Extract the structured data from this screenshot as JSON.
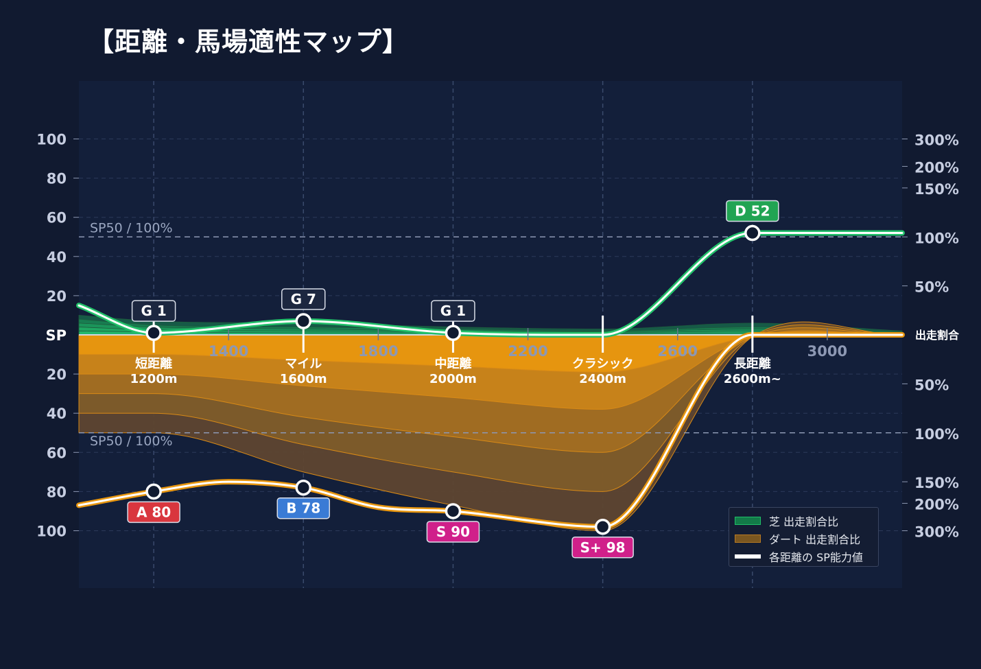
{
  "title": "【距離・馬場適性マップ】",
  "colors": {
    "background": "#111a30",
    "plot_bg": "#131f3a",
    "turf": "#22c06a",
    "dirt": "#e8960f",
    "grid": "#2c3a5a",
    "rank_S": "#d0208a",
    "rank_A": "#d9363e",
    "rank_B": "#3a7bd5",
    "rank_D": "#21a453",
    "badge_G": "#1c2740"
  },
  "legend": {
    "turf_label": "芝 出走割合比",
    "dirt_label": "ダート 出走割合比",
    "sp_label": "各距離の SP能力値"
  },
  "chart_data": {
    "type": "area",
    "x_ticks": [
      "1400",
      "1800",
      "2200",
      "2600",
      "3000"
    ],
    "x_tick_values": [
      1400,
      1800,
      2200,
      2600,
      3000
    ],
    "xlim": [
      1000,
      3200
    ],
    "y_ticks_upper": [
      "100",
      "80",
      "60",
      "40",
      "20"
    ],
    "y_tick_values_upper": [
      100,
      80,
      60,
      40,
      20
    ],
    "y_ticks_lower": [
      "20",
      "40",
      "60",
      "80",
      "100"
    ],
    "y_tick_values_lower": [
      20,
      40,
      60,
      80,
      100
    ],
    "y_center_label": "SP",
    "ylim_upper": [
      0,
      120
    ],
    "ylim_lower": [
      0,
      120
    ],
    "right_ticks_upper": [
      {
        "label": "300%",
        "sp": 100
      },
      {
        "label": "200%",
        "sp": 86
      },
      {
        "label": "150%",
        "sp": 75
      },
      {
        "label": "100%",
        "sp": 50
      },
      {
        "label": "50%",
        "sp": 25
      }
    ],
    "right_ticks_lower": [
      {
        "label": "50%",
        "sp": 25
      },
      {
        "label": "100%",
        "sp": 50
      },
      {
        "label": "150%",
        "sp": 75
      },
      {
        "label": "200%",
        "sp": 86
      },
      {
        "label": "300%",
        "sp": 100
      }
    ],
    "right_center_label": "出走割合",
    "reference_label_upper": "SP50 / 100%",
    "reference_label_lower": "SP50 / 100%",
    "reference_value": 50,
    "categories": [
      {
        "name": "短距離",
        "distance": "1200m",
        "x": 1200
      },
      {
        "name": "マイル",
        "distance": "1600m",
        "x": 1600
      },
      {
        "name": "中距離",
        "distance": "2000m",
        "x": 2000
      },
      {
        "name": "クラシック",
        "distance": "2400m",
        "x": 2400
      },
      {
        "name": "長距離",
        "distance": "2600m~",
        "x": 2800
      }
    ],
    "turf_sp": {
      "points": [
        [
          1000,
          15
        ],
        [
          1200,
          1
        ],
        [
          1600,
          7
        ],
        [
          2000,
          1
        ],
        [
          2400,
          0
        ],
        [
          2800,
          52
        ],
        [
          3200,
          52
        ]
      ],
      "badges": [
        {
          "x": 1200,
          "y": 1,
          "label": "G 1",
          "rank": "G"
        },
        {
          "x": 1600,
          "y": 7,
          "label": "G 7",
          "rank": "G"
        },
        {
          "x": 2000,
          "y": 1,
          "label": "G 1",
          "rank": "G"
        },
        {
          "x": 2800,
          "y": 52,
          "label": "D 52",
          "rank": "D"
        }
      ]
    },
    "dirt_sp": {
      "points": [
        [
          1000,
          87
        ],
        [
          1200,
          80
        ],
        [
          1400,
          75
        ],
        [
          1600,
          78
        ],
        [
          1800,
          88
        ],
        [
          2000,
          90
        ],
        [
          2400,
          98
        ],
        [
          2800,
          0
        ],
        [
          3200,
          0
        ]
      ],
      "badges": [
        {
          "x": 1200,
          "y": 80,
          "label": "A 80",
          "rank": "A"
        },
        {
          "x": 1600,
          "y": 78,
          "label": "B 78",
          "rank": "B"
        },
        {
          "x": 2000,
          "y": 90,
          "label": "S 90",
          "rank": "S"
        },
        {
          "x": 2400,
          "y": 98,
          "label": "S+ 98",
          "rank": "S"
        }
      ]
    },
    "turf_ratio": {
      "x": [
        1000,
        1200,
        1600,
        2000,
        2400,
        2800,
        3200
      ],
      "layers": [
        [
          10,
          7,
          6,
          4,
          3,
          6,
          2
        ],
        [
          8,
          5,
          4,
          3,
          2,
          4,
          1.5
        ],
        [
          6,
          4,
          3,
          2,
          1.5,
          3,
          1
        ],
        [
          4,
          2.5,
          2,
          1.5,
          1,
          2,
          0.5
        ],
        [
          2,
          1.5,
          1,
          1,
          0.5,
          1,
          0.3
        ]
      ]
    },
    "dirt_ratio": {
      "x": [
        1000,
        1200,
        1600,
        2000,
        2400,
        2800,
        3200
      ],
      "layers": [
        [
          10,
          10,
          13,
          16,
          19,
          1,
          0
        ],
        [
          20,
          20,
          26,
          32,
          38,
          1,
          0
        ],
        [
          30,
          30,
          42,
          52,
          60,
          1,
          0
        ],
        [
          40,
          40,
          56,
          70,
          80,
          1,
          0
        ],
        [
          50,
          50,
          70,
          87,
          100,
          1,
          0
        ]
      ]
    },
    "grid": true,
    "legend_position": "bottom-right"
  }
}
